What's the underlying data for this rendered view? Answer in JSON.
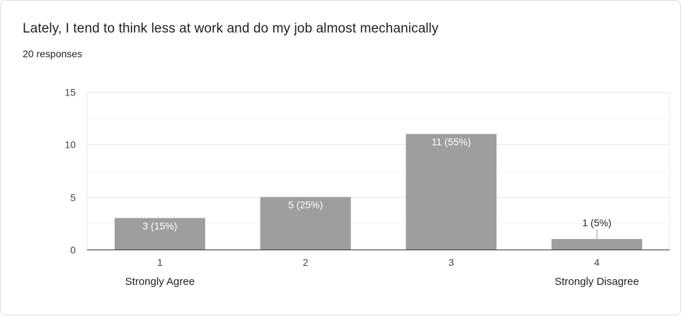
{
  "question": {
    "title": "Lately, I tend to think less at work and do my job almost mechanically",
    "responses_label": "20 responses"
  },
  "chart_data": {
    "type": "bar",
    "categories": [
      "1",
      "2",
      "3",
      "4"
    ],
    "values": [
      3,
      5,
      11,
      1
    ],
    "data_labels": [
      "3 (15%)",
      "5 (25%)",
      "11 (55%)",
      "1 (5%)"
    ],
    "ylim": [
      0,
      15
    ],
    "yticks": [
      0,
      5,
      10,
      15
    ],
    "grid": true,
    "endpoint_labels": {
      "low": "Strongly Agree",
      "high": "Strongly Disagree"
    },
    "bar_color": "#9e9e9e"
  }
}
